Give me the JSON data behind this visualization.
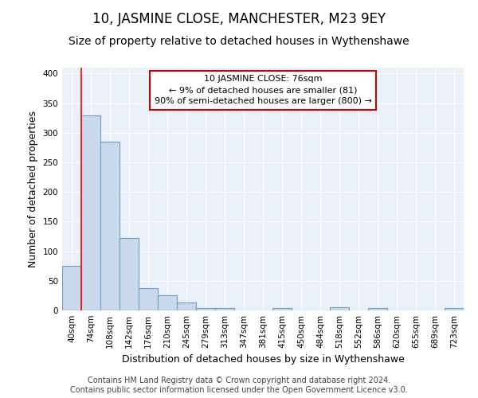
{
  "title": "10, JASMINE CLOSE, MANCHESTER, M23 9EY",
  "subtitle": "Size of property relative to detached houses in Wythenshawe",
  "xlabel": "Distribution of detached houses by size in Wythenshawe",
  "ylabel": "Number of detached properties",
  "footer_line1": "Contains HM Land Registry data © Crown copyright and database right 2024.",
  "footer_line2": "Contains public sector information licensed under the Open Government Licence v3.0.",
  "categories": [
    "40sqm",
    "74sqm",
    "108sqm",
    "142sqm",
    "176sqm",
    "210sqm",
    "245sqm",
    "279sqm",
    "313sqm",
    "347sqm",
    "381sqm",
    "415sqm",
    "450sqm",
    "484sqm",
    "518sqm",
    "552sqm",
    "586sqm",
    "620sqm",
    "655sqm",
    "689sqm",
    "723sqm"
  ],
  "values": [
    75,
    330,
    285,
    122,
    38,
    25,
    13,
    4,
    4,
    0,
    0,
    4,
    0,
    0,
    5,
    0,
    4,
    0,
    0,
    0,
    4
  ],
  "bar_color": "#c9d9eb",
  "bar_edge_color": "#6a9ec4",
  "bar_edge_width": 0.8,
  "background_color": "#eaf0f8",
  "grid_color": "#ffffff",
  "red_line_index": 1,
  "annotation_text": "10 JASMINE CLOSE: 76sqm\n← 9% of detached houses are smaller (81)\n90% of semi-detached houses are larger (800) →",
  "annotation_box_color": "#ffffff",
  "annotation_box_edge_color": "#cc0000",
  "ylim": [
    0,
    410
  ],
  "yticks": [
    0,
    50,
    100,
    150,
    200,
    250,
    300,
    350,
    400
  ],
  "title_fontsize": 12,
  "subtitle_fontsize": 10,
  "axis_label_fontsize": 9,
  "tick_fontsize": 7.5,
  "annotation_fontsize": 8,
  "footer_fontsize": 7
}
